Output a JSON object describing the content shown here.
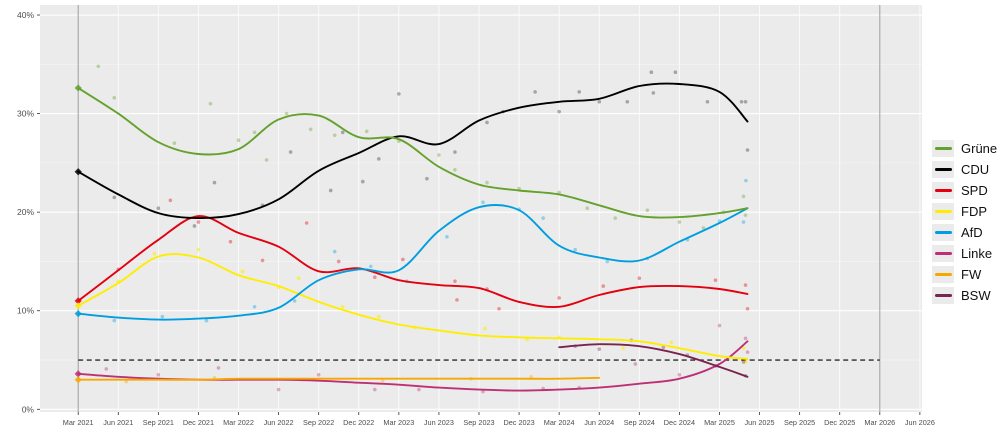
{
  "page": {
    "background": "#FFFFFF"
  },
  "panel": {
    "bg": "#EBEBEB",
    "grid_major": "#FFFFFF",
    "grid_minor": "#F5F5F5",
    "axis_text_color": "#4D4D4D",
    "tick_color": "#333333",
    "election_line_color": "#A3A3A3"
  },
  "chart_data": {
    "type": "line",
    "title": "",
    "xlabel": "",
    "ylabel": "",
    "ylim": [
      0,
      40
    ],
    "grid": true,
    "x_tick_labels": [
      "Mar 2021",
      "Jun 2021",
      "Sep 2021",
      "Dec 2021",
      "Mar 2022",
      "Jun 2022",
      "Sep 2022",
      "Dec 2022",
      "Mar 2023",
      "Jun 2023",
      "Sep 2023",
      "Dec 2023",
      "Mar 2024",
      "Jun 2024",
      "Sep 2024",
      "Dec 2024",
      "Mar 2025",
      "Jun 2025",
      "Sep 2025",
      "Dec 2025",
      "Mar 2026",
      "Jun 2026"
    ],
    "y_ticks": [
      {
        "value": 0,
        "label": "0%"
      },
      {
        "value": 10,
        "label": "10%"
      },
      {
        "value": 20,
        "label": "20%"
      },
      {
        "value": 30,
        "label": "30%"
      },
      {
        "value": 40,
        "label": "40%"
      }
    ],
    "threshold": {
      "value": 5,
      "color": "#2B2B2B",
      "from_q": 0,
      "to_q": 20
    },
    "election_marker_lines": [
      {
        "q": 0,
        "x_label": "Mar 2021"
      },
      {
        "q": 20,
        "x_label": "Mar 2026"
      }
    ],
    "legend": {
      "position": "right",
      "entries": [
        "Grüne",
        "CDU",
        "SPD",
        "FDP",
        "AfD",
        "Linke",
        "FW",
        "BSW"
      ]
    },
    "series": [
      {
        "id": "gruene",
        "label": "Grüne",
        "color": "#64A12D",
        "election_result": 32.6,
        "q": [
          0,
          1,
          2,
          3,
          4,
          5,
          6,
          7,
          8,
          9,
          10,
          11,
          12,
          13,
          14,
          15,
          16,
          16.7
        ],
        "trend": [
          32.6,
          30.0,
          27.1,
          25.9,
          26.4,
          29.4,
          29.8,
          27.6,
          27.4,
          24.6,
          22.8,
          22.2,
          21.8,
          20.7,
          19.6,
          19.5,
          19.9,
          20.4
        ],
        "dots": [
          [
            0.5,
            34.8
          ],
          [
            0.9,
            31.6
          ],
          [
            2.4,
            27.0
          ],
          [
            3.3,
            31.0
          ],
          [
            4.0,
            27.3
          ],
          [
            4.4,
            28.1
          ],
          [
            4.7,
            25.3
          ],
          [
            5.2,
            30.0
          ],
          [
            5.8,
            28.4
          ],
          [
            6.4,
            27.8
          ],
          [
            7.2,
            28.2
          ],
          [
            8.0,
            27.2
          ],
          [
            9.0,
            25.8
          ],
          [
            9.4,
            24.3
          ],
          [
            10.2,
            23.0
          ],
          [
            11.0,
            22.4
          ],
          [
            12.0,
            22.0
          ],
          [
            12.7,
            20.4
          ],
          [
            13.4,
            19.4
          ],
          [
            14.2,
            20.2
          ],
          [
            15.0,
            19.0
          ],
          [
            15.6,
            18.4
          ],
          [
            16.1,
            20.0
          ],
          [
            16.6,
            21.6
          ],
          [
            16.65,
            19.7
          ]
        ]
      },
      {
        "id": "cdu",
        "label": "CDU",
        "color": "#000000",
        "election_result": 24.1,
        "q": [
          0,
          1,
          2,
          3,
          4,
          5,
          6,
          7,
          8,
          9,
          10,
          11,
          12,
          13,
          14,
          15,
          16,
          16.7
        ],
        "trend": [
          24.1,
          21.8,
          19.9,
          19.4,
          19.8,
          21.3,
          24.2,
          26.0,
          27.7,
          26.9,
          29.3,
          30.6,
          31.2,
          31.5,
          32.8,
          33.0,
          32.2,
          29.2
        ],
        "dots": [
          [
            0.9,
            21.5
          ],
          [
            2.0,
            20.4
          ],
          [
            2.9,
            18.6
          ],
          [
            3.4,
            23.0
          ],
          [
            4.6,
            20.7
          ],
          [
            5.3,
            26.1
          ],
          [
            6.3,
            22.2
          ],
          [
            6.6,
            28.1
          ],
          [
            7.1,
            23.1
          ],
          [
            7.5,
            25.4
          ],
          [
            8.0,
            32.0
          ],
          [
            8.7,
            23.4
          ],
          [
            9.4,
            26.1
          ],
          [
            10.2,
            29.1
          ],
          [
            10.6,
            30.2
          ],
          [
            11.4,
            32.2
          ],
          [
            12.0,
            30.2
          ],
          [
            12.5,
            32.2
          ],
          [
            13.0,
            31.2
          ],
          [
            13.7,
            31.2
          ],
          [
            14.3,
            34.2
          ],
          [
            14.35,
            32.1
          ],
          [
            14.9,
            34.2
          ],
          [
            15.7,
            31.2
          ],
          [
            16.55,
            31.2
          ],
          [
            16.65,
            31.2
          ],
          [
            16.7,
            26.3
          ]
        ]
      },
      {
        "id": "spd",
        "label": "SPD",
        "color": "#E3000F",
        "election_result": 11.0,
        "q": [
          0,
          1,
          2,
          3,
          4,
          5,
          6,
          7,
          8,
          9,
          10,
          11,
          12,
          13,
          14,
          15,
          16,
          16.7
        ],
        "trend": [
          11.0,
          14.1,
          17.2,
          19.6,
          17.9,
          16.5,
          14.0,
          14.3,
          13.1,
          12.6,
          12.3,
          10.9,
          10.4,
          11.6,
          12.4,
          12.5,
          12.2,
          11.7
        ],
        "dots": [
          [
            1.0,
            14.2
          ],
          [
            2.3,
            21.2
          ],
          [
            3.0,
            19.0
          ],
          [
            3.8,
            17.0
          ],
          [
            4.6,
            15.1
          ],
          [
            5.7,
            18.9
          ],
          [
            6.5,
            15.0
          ],
          [
            7.4,
            13.4
          ],
          [
            8.1,
            15.2
          ],
          [
            9.4,
            13.0
          ],
          [
            9.45,
            11.1
          ],
          [
            10.2,
            12.2
          ],
          [
            10.5,
            10.2
          ],
          [
            12.0,
            11.3
          ],
          [
            13.1,
            12.5
          ],
          [
            14.0,
            13.3
          ],
          [
            15.9,
            13.1
          ],
          [
            16.65,
            12.6
          ],
          [
            16.7,
            10.2
          ]
        ]
      },
      {
        "id": "fdp",
        "label": "FDP",
        "color": "#FFED00",
        "election_result": 10.5,
        "q": [
          0,
          1,
          2,
          3,
          4,
          5,
          6,
          7,
          8,
          9,
          10,
          11,
          12,
          13,
          14,
          15,
          16,
          16.7
        ],
        "trend": [
          10.5,
          12.8,
          15.5,
          15.4,
          13.6,
          12.5,
          10.9,
          9.6,
          8.6,
          8.0,
          7.5,
          7.3,
          7.2,
          7.1,
          6.9,
          6.2,
          5.4,
          5.1
        ],
        "dots": [
          [
            1.0,
            13.0
          ],
          [
            1.9,
            15.8
          ],
          [
            3.0,
            16.2
          ],
          [
            4.1,
            14.0
          ],
          [
            5.0,
            12.4
          ],
          [
            5.5,
            13.3
          ],
          [
            6.6,
            10.4
          ],
          [
            7.5,
            9.4
          ],
          [
            8.4,
            8.3
          ],
          [
            10.15,
            8.2
          ],
          [
            11.2,
            7.1
          ],
          [
            12.0,
            7.3
          ],
          [
            13.6,
            6.2
          ],
          [
            14.8,
            6.8
          ],
          [
            16.6,
            6.2
          ],
          [
            16.65,
            4.8
          ]
        ]
      },
      {
        "id": "afd",
        "label": "AfD",
        "color": "#009EE0",
        "election_result": 9.7,
        "q": [
          0,
          1,
          2,
          3,
          4,
          5,
          6,
          7,
          8,
          9,
          10,
          11,
          12,
          13,
          14,
          15,
          16,
          16.7
        ],
        "trend": [
          9.7,
          9.3,
          9.1,
          9.2,
          9.5,
          10.3,
          13.1,
          14.2,
          14.1,
          18.1,
          20.5,
          20.2,
          16.6,
          15.4,
          15.1,
          17.0,
          18.9,
          20.4
        ],
        "dots": [
          [
            0.9,
            9.0
          ],
          [
            2.1,
            9.4
          ],
          [
            3.2,
            9.0
          ],
          [
            4.4,
            10.4
          ],
          [
            5.4,
            11.0
          ],
          [
            6.4,
            16.0
          ],
          [
            7.3,
            14.5
          ],
          [
            8.2,
            13.0
          ],
          [
            9.2,
            17.5
          ],
          [
            10.1,
            21.0
          ],
          [
            11.0,
            20.3
          ],
          [
            11.6,
            19.4
          ],
          [
            12.4,
            16.2
          ],
          [
            13.2,
            15.0
          ],
          [
            14.2,
            15.3
          ],
          [
            15.2,
            17.2
          ],
          [
            16.0,
            19.1
          ],
          [
            16.6,
            19.0
          ],
          [
            16.66,
            23.2
          ]
        ]
      },
      {
        "id": "linke",
        "label": "Linke",
        "color": "#BE3075",
        "election_result": 3.6,
        "q": [
          0,
          1,
          2,
          3,
          4,
          5,
          6,
          7,
          8,
          9,
          10,
          11,
          12,
          13,
          14,
          15,
          16,
          16.7
        ],
        "trend": [
          3.6,
          3.3,
          3.1,
          3.0,
          3.0,
          3.0,
          2.9,
          2.7,
          2.5,
          2.2,
          2.0,
          1.9,
          2.0,
          2.2,
          2.6,
          3.1,
          4.6,
          6.9
        ],
        "dots": [
          [
            0.7,
            4.1
          ],
          [
            2.0,
            3.5
          ],
          [
            3.5,
            4.2
          ],
          [
            5.0,
            2.0
          ],
          [
            6.0,
            3.5
          ],
          [
            7.4,
            2.0
          ],
          [
            8.5,
            2.0
          ],
          [
            10.1,
            1.8
          ],
          [
            11.6,
            2.1
          ],
          [
            12.5,
            2.2
          ],
          [
            13.9,
            4.6
          ],
          [
            15.0,
            3.5
          ],
          [
            16.0,
            8.5
          ],
          [
            16.65,
            7.2
          ],
          [
            16.7,
            5.8
          ]
        ]
      },
      {
        "id": "fw",
        "label": "FW",
        "color": "#F7A800",
        "election_result": 3.0,
        "q": [
          0,
          1,
          2,
          3,
          4,
          5,
          6,
          7,
          8,
          9,
          10,
          11,
          12,
          13
        ],
        "trend": [
          3.0,
          3.0,
          3.0,
          3.0,
          3.1,
          3.1,
          3.1,
          3.1,
          3.1,
          3.1,
          3.1,
          3.1,
          3.1,
          3.2
        ],
        "dots": [
          [
            1.2,
            2.8
          ],
          [
            3.4,
            3.2
          ],
          [
            5.6,
            3.0
          ],
          [
            7.6,
            2.9
          ],
          [
            9.8,
            3.1
          ],
          [
            11.3,
            3.3
          ]
        ]
      },
      {
        "id": "bsw",
        "label": "BSW",
        "color": "#792350",
        "election_result": null,
        "q": [
          12,
          13,
          14,
          15,
          16,
          16.7
        ],
        "trend": [
          6.3,
          6.6,
          6.4,
          5.6,
          4.3,
          3.3
        ],
        "dots": [
          [
            12.4,
            6.4
          ],
          [
            13.0,
            6.1
          ],
          [
            13.8,
            7.0
          ],
          [
            14.6,
            6.3
          ],
          [
            15.2,
            5.5
          ],
          [
            15.9,
            4.4
          ],
          [
            16.6,
            4.8
          ],
          [
            16.65,
            3.4
          ]
        ]
      }
    ]
  }
}
